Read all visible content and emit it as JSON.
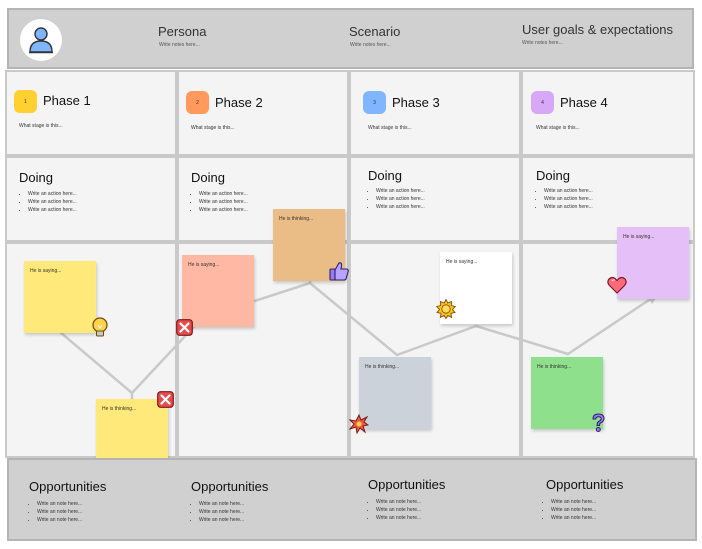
{
  "header": {
    "persona": {
      "title": "Persona",
      "note": "Write notes here..."
    },
    "scenario": {
      "title": "Scenario",
      "note": "Write notes here..."
    },
    "goals": {
      "title": "User goals & expectations",
      "note": "Write notes here..."
    }
  },
  "phases": [
    {
      "number": "1",
      "title": "Phase 1",
      "note": "What stage is this...",
      "color": "#ffd02f"
    },
    {
      "number": "2",
      "title": "Phase 2",
      "note": "What stage is this...",
      "color": "#ff9a5c"
    },
    {
      "number": "3",
      "title": "Phase 3",
      "note": "What stage is this...",
      "color": "#7fb6ff"
    },
    {
      "number": "4",
      "title": "Phase 4",
      "note": "What stage is this...",
      "color": "#d7a8f7"
    }
  ],
  "doing": {
    "title": "Doing",
    "items": [
      "Write an action here...",
      "Write an action here...",
      "Write an action here..."
    ]
  },
  "stickies": [
    {
      "text": "He is saying...",
      "color": "#ffe97a"
    },
    {
      "text": "He is thinking...",
      "color": "#ffe97a"
    },
    {
      "text": "He is saying...",
      "color": "#ffb8a3"
    },
    {
      "text": "He is thinking...",
      "color": "#e9bd85"
    },
    {
      "text": "He is thinking...",
      "color": "#ccd2da"
    },
    {
      "text": "He is saying...",
      "color": "#ffffff"
    },
    {
      "text": "He is thinking...",
      "color": "#8ee08c"
    },
    {
      "text": "He is saying...",
      "color": "#e5c0f8"
    }
  ],
  "opportunities": {
    "title": "Opportunities",
    "items": [
      "Write an note here...",
      "Write an note here...",
      "Write an note here..."
    ]
  },
  "icons": [
    "avatar-icon",
    "lightbulb-icon",
    "x-mark-icon",
    "thumbs-up-icon",
    "explosion-icon",
    "sun-icon",
    "heart-icon",
    "question-icon"
  ]
}
